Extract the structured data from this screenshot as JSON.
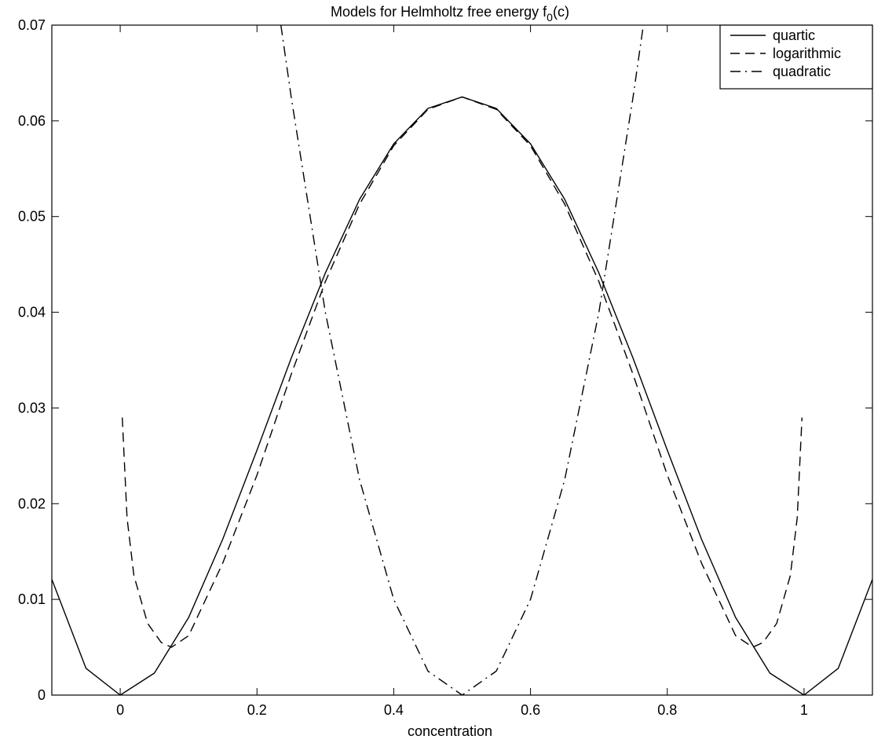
{
  "chart_data": {
    "type": "line",
    "title_main": "Models for Helmholtz free energy f",
    "title_sub": "0",
    "title_tail": "(c)",
    "xlabel": "concentration",
    "ylabel": "",
    "xlim": [
      -0.1,
      1.1
    ],
    "ylim": [
      0,
      0.07
    ],
    "xticks": [
      0,
      0.2,
      0.4,
      0.6,
      0.8,
      1
    ],
    "xtick_labels": [
      "0",
      "0.2",
      "0.4",
      "0.6",
      "0.8",
      "1"
    ],
    "yticks": [
      0,
      0.01,
      0.02,
      0.03,
      0.04,
      0.05,
      0.06,
      0.07
    ],
    "ytick_labels": [
      "0",
      "0.01",
      "0.02",
      "0.03",
      "0.04",
      "0.05",
      "0.06",
      "0.07"
    ],
    "grid": false,
    "legend_position": "top-right",
    "series": [
      {
        "name": "quartic",
        "style": "solid",
        "x": [
          -0.1,
          -0.05,
          0,
          0.05,
          0.1,
          0.15,
          0.2,
          0.25,
          0.3,
          0.35,
          0.4,
          0.45,
          0.5,
          0.55,
          0.6,
          0.65,
          0.7,
          0.75,
          0.8,
          0.85,
          0.9,
          0.95,
          1.0,
          1.05,
          1.1
        ],
        "y": [
          0.0121,
          0.0028,
          0,
          0.0023,
          0.0081,
          0.0163,
          0.0256,
          0.0352,
          0.0441,
          0.0518,
          0.0576,
          0.0613,
          0.0625,
          0.0613,
          0.0576,
          0.0518,
          0.0441,
          0.0352,
          0.0256,
          0.0163,
          0.0081,
          0.0023,
          0,
          0.0028,
          0.0121
        ]
      },
      {
        "name": "logarithmic",
        "style": "dashed",
        "x": [
          0.003,
          0.01,
          0.02,
          0.04,
          0.06,
          0.075,
          0.1,
          0.15,
          0.2,
          0.25,
          0.3,
          0.35,
          0.4,
          0.45,
          0.5,
          0.55,
          0.6,
          0.65,
          0.7,
          0.75,
          0.8,
          0.85,
          0.9,
          0.925,
          0.94,
          0.96,
          0.98,
          0.99,
          0.997
        ],
        "y": [
          0.029,
          0.0185,
          0.0125,
          0.0075,
          0.0055,
          0.005,
          0.0062,
          0.0138,
          0.023,
          0.0335,
          0.0432,
          0.0513,
          0.0574,
          0.0612,
          0.0625,
          0.0612,
          0.0574,
          0.0513,
          0.0432,
          0.0335,
          0.023,
          0.0138,
          0.0062,
          0.005,
          0.0055,
          0.0075,
          0.0125,
          0.0185,
          0.029
        ]
      },
      {
        "name": "quadratic",
        "style": "dashdot",
        "x": [
          0.235,
          0.25,
          0.3,
          0.35,
          0.4,
          0.45,
          0.5,
          0.55,
          0.6,
          0.65,
          0.7,
          0.75,
          0.765
        ],
        "y": [
          0.07,
          0.0625,
          0.04,
          0.0225,
          0.01,
          0.0025,
          0,
          0.0025,
          0.01,
          0.0225,
          0.04,
          0.0625,
          0.07
        ]
      }
    ]
  }
}
